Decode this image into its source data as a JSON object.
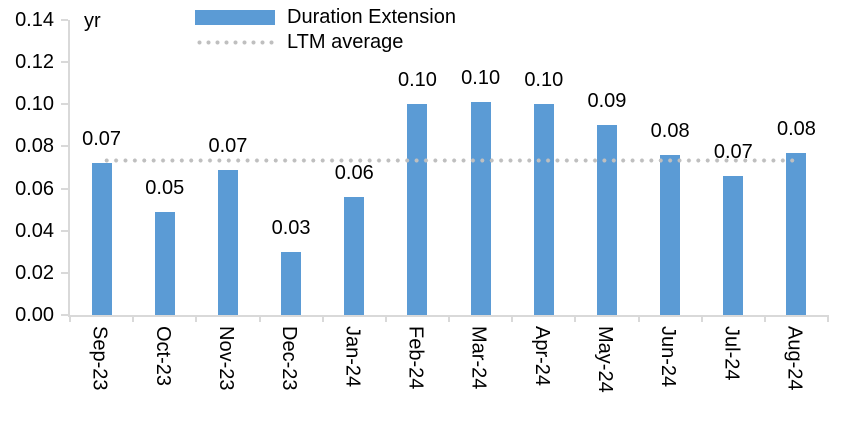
{
  "chart_data": {
    "type": "bar",
    "title": "",
    "unit_label": "yr",
    "categories": [
      "Sep-23",
      "Oct-23",
      "Nov-23",
      "Dec-23",
      "Jan-24",
      "Feb-24",
      "Mar-24",
      "Apr-24",
      "May-24",
      "Jun-24",
      "Jul-24",
      "Aug-24"
    ],
    "series": [
      {
        "name": "Duration Extension",
        "type": "bar",
        "color": "#5B9BD5",
        "values": [
          0.072,
          0.049,
          0.069,
          0.03,
          0.056,
          0.1,
          0.101,
          0.1,
          0.09,
          0.076,
          0.066,
          0.077
        ]
      },
      {
        "name": "LTM average",
        "type": "dotted-line",
        "color": "#BFBFBF",
        "value": 0.073
      }
    ],
    "data_labels": [
      "0.07",
      "0.05",
      "0.07",
      "0.03",
      "0.06",
      "0.10",
      "0.10",
      "0.10",
      "0.09",
      "0.08",
      "0.07",
      "0.08"
    ],
    "y_axis": {
      "min": 0,
      "max": 0.14,
      "step": 0.02,
      "tick_labels": [
        "0.00",
        "0.02",
        "0.04",
        "0.06",
        "0.08",
        "0.10",
        "0.12",
        "0.14"
      ]
    },
    "x_axis": {
      "boundary_ticks": 13
    },
    "legend": {
      "position": "top",
      "entries": [
        {
          "label": "Duration Extension",
          "swatch": "bar"
        },
        {
          "label": "LTM average",
          "swatch": "dotted-line"
        }
      ]
    },
    "grid": false
  },
  "colors": {
    "bar": "#5B9BD5",
    "dotted_line": "#BFBFBF",
    "axis_line": "#D9D9D9",
    "text": "#000000",
    "background": "#FFFFFF"
  }
}
